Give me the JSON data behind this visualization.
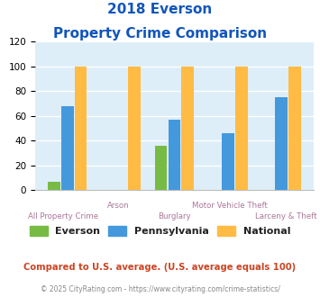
{
  "title_line1": "2018 Everson",
  "title_line2": "Property Crime Comparison",
  "categories": [
    "All Property Crime",
    "Arson",
    "Burglary",
    "Motor Vehicle Theft",
    "Larceny & Theft"
  ],
  "everson": [
    7,
    0,
    36,
    0,
    0
  ],
  "pennsylvania": [
    68,
    0,
    57,
    46,
    75
  ],
  "national": [
    100,
    100,
    100,
    100,
    100
  ],
  "everson_color": "#77bb44",
  "pennsylvania_color": "#4499dd",
  "national_color": "#ffbb44",
  "ylim": [
    0,
    120
  ],
  "yticks": [
    0,
    20,
    40,
    60,
    80,
    100,
    120
  ],
  "title_color": "#1155bb",
  "xlabel_color_bottom": "#aa7799",
  "xlabel_color_top": "#aa7799",
  "legend_labels": [
    "Everson",
    "Pennsylvania",
    "National"
  ],
  "footnote1": "Compared to U.S. average. (U.S. average equals 100)",
  "footnote2": "© 2025 CityRating.com - https://www.cityrating.com/crime-statistics/",
  "footnote1_color": "#cc4422",
  "footnote2_color": "#888888",
  "plot_bg_color": "#ddeef8"
}
